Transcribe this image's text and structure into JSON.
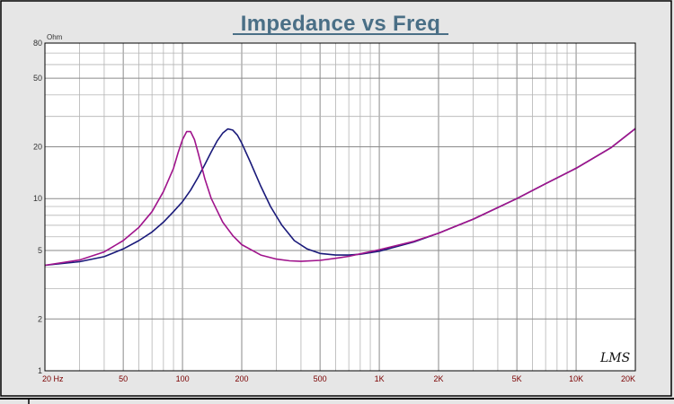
{
  "chart_data": {
    "type": "line",
    "title": "Impedance vs Freq",
    "ylabel_unit": "Ohm",
    "x_scale": "log",
    "y_scale": "log",
    "xlim": [
      20,
      20000
    ],
    "ylim": [
      1,
      80
    ],
    "x_ticks": [
      {
        "value": 20,
        "label": "20  Hz"
      },
      {
        "value": 50,
        "label": "50"
      },
      {
        "value": 100,
        "label": "100"
      },
      {
        "value": 200,
        "label": "200"
      },
      {
        "value": 500,
        "label": "500"
      },
      {
        "value": 1000,
        "label": "1K"
      },
      {
        "value": 2000,
        "label": "2K"
      },
      {
        "value": 5000,
        "label": "5K"
      },
      {
        "value": 10000,
        "label": "10K"
      },
      {
        "value": 20000,
        "label": "20K"
      }
    ],
    "y_ticks": [
      {
        "value": 80,
        "label": "80"
      },
      {
        "value": 50,
        "label": "50"
      },
      {
        "value": 20,
        "label": "20"
      },
      {
        "value": 10,
        "label": "10"
      },
      {
        "value": 5,
        "label": "5"
      },
      {
        "value": 2,
        "label": "2"
      },
      {
        "value": 1,
        "label": "1"
      }
    ],
    "grid": true,
    "watermark": "LMS",
    "series": [
      {
        "color": "#1a1a7a",
        "points": [
          [
            20,
            4.1
          ],
          [
            30,
            4.3
          ],
          [
            40,
            4.6
          ],
          [
            50,
            5.1
          ],
          [
            60,
            5.7
          ],
          [
            70,
            6.4
          ],
          [
            80,
            7.3
          ],
          [
            90,
            8.4
          ],
          [
            100,
            9.6
          ],
          [
            110,
            11.2
          ],
          [
            120,
            13.3
          ],
          [
            130,
            15.8
          ],
          [
            140,
            18.7
          ],
          [
            150,
            21.6
          ],
          [
            160,
            24.0
          ],
          [
            170,
            25.4
          ],
          [
            180,
            25.0
          ],
          [
            190,
            23.4
          ],
          [
            200,
            21.0
          ],
          [
            220,
            16.5
          ],
          [
            250,
            11.8
          ],
          [
            280,
            9.0
          ],
          [
            320,
            7.0
          ],
          [
            370,
            5.7
          ],
          [
            430,
            5.1
          ],
          [
            500,
            4.8
          ],
          [
            600,
            4.7
          ],
          [
            700,
            4.7
          ],
          [
            800,
            4.75
          ],
          [
            1000,
            4.95
          ],
          [
            1500,
            5.6
          ],
          [
            2000,
            6.3
          ],
          [
            3000,
            7.6
          ],
          [
            5000,
            10.0
          ],
          [
            7000,
            12.2
          ],
          [
            10000,
            15.0
          ],
          [
            15000,
            19.7
          ],
          [
            20000,
            25.5
          ]
        ]
      },
      {
        "color": "#a0148c",
        "points": [
          [
            20,
            4.1
          ],
          [
            30,
            4.4
          ],
          [
            40,
            4.9
          ],
          [
            50,
            5.7
          ],
          [
            60,
            6.8
          ],
          [
            70,
            8.4
          ],
          [
            80,
            11.0
          ],
          [
            90,
            15.0
          ],
          [
            95,
            18.5
          ],
          [
            100,
            22.0
          ],
          [
            105,
            24.5
          ],
          [
            110,
            24.5
          ],
          [
            115,
            22.0
          ],
          [
            120,
            18.5
          ],
          [
            130,
            13.0
          ],
          [
            140,
            10.0
          ],
          [
            160,
            7.3
          ],
          [
            180,
            6.1
          ],
          [
            200,
            5.4
          ],
          [
            250,
            4.7
          ],
          [
            300,
            4.45
          ],
          [
            350,
            4.35
          ],
          [
            400,
            4.32
          ],
          [
            500,
            4.38
          ],
          [
            600,
            4.5
          ],
          [
            700,
            4.62
          ],
          [
            800,
            4.78
          ],
          [
            1000,
            5.05
          ],
          [
            1500,
            5.65
          ],
          [
            2000,
            6.3
          ],
          [
            3000,
            7.6
          ],
          [
            5000,
            10.0
          ],
          [
            7000,
            12.2
          ],
          [
            10000,
            15.0
          ],
          [
            15000,
            19.7
          ],
          [
            20000,
            25.5
          ]
        ]
      }
    ]
  }
}
